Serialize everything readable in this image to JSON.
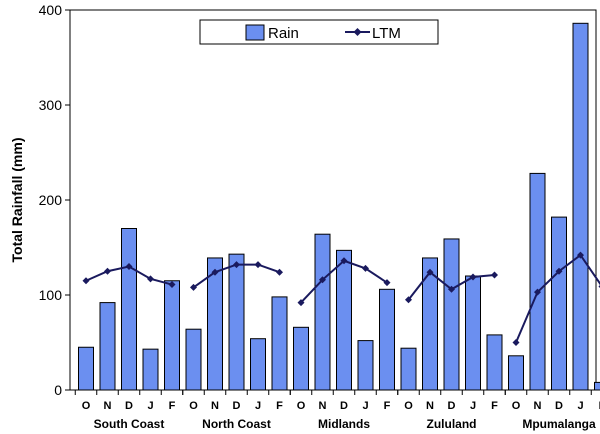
{
  "chart_data": {
    "type": "bar",
    "ylabel": "Total Rainfall (mm)",
    "ylim": [
      0,
      400
    ],
    "yticks": [
      0,
      100,
      200,
      300,
      400
    ],
    "grid": false,
    "legend_position": "top-center",
    "months": [
      "O",
      "N",
      "D",
      "J",
      "F"
    ],
    "regions": [
      "South Coast",
      "North Coast",
      "Midlands",
      "Zululand",
      "Mpumalanga"
    ],
    "series": [
      {
        "name": "Rain",
        "kind": "bar",
        "color": "#6b8ff0",
        "values": [
          [
            45,
            92,
            170,
            43,
            115
          ],
          [
            64,
            139,
            143,
            54,
            98
          ],
          [
            66,
            164,
            147,
            52,
            106
          ],
          [
            44,
            139,
            159,
            120,
            58
          ],
          [
            36,
            228,
            182,
            386,
            8
          ]
        ]
      },
      {
        "name": "LTM",
        "kind": "line",
        "color": "#1a1a5e",
        "values": [
          [
            115,
            125,
            130,
            117,
            111
          ],
          [
            108,
            124,
            132,
            132,
            124
          ],
          [
            92,
            116,
            136,
            128,
            113
          ],
          [
            95,
            124,
            106,
            119,
            121
          ],
          [
            50,
            103,
            125,
            142,
            109
          ]
        ]
      }
    ]
  }
}
